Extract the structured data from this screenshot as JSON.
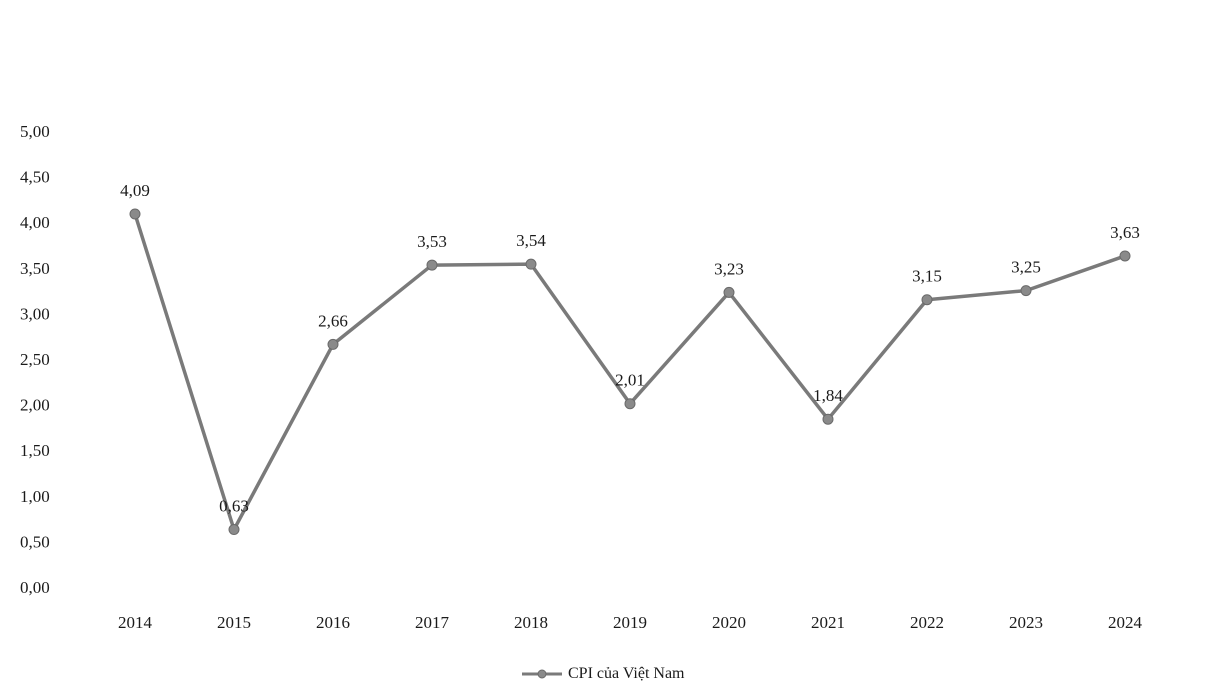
{
  "chart_data": {
    "type": "line",
    "title": "",
    "xlabel": "",
    "ylabel": "",
    "categories": [
      "2014",
      "2015",
      "2016",
      "2017",
      "2018",
      "2019",
      "2020",
      "2021",
      "2022",
      "2023",
      "2024"
    ],
    "series": [
      {
        "name": "CPI của Việt Nam",
        "values": [
          4.09,
          0.63,
          2.66,
          3.53,
          3.54,
          2.01,
          3.23,
          1.84,
          3.15,
          3.25,
          3.63
        ],
        "labels": [
          "4,09",
          "0,63",
          "2,66",
          "3,53",
          "3,54",
          "2,01",
          "3,23",
          "1,84",
          "3,15",
          "3,25",
          "3,63"
        ],
        "color": "#7a7a7a",
        "marker_color": "#8a8a8a"
      }
    ],
    "yticks": [
      {
        "value": 0,
        "label": "0,00"
      },
      {
        "value": 0.5,
        "label": "0,50"
      },
      {
        "value": 1,
        "label": "1,00"
      },
      {
        "value": 1.5,
        "label": "1,50"
      },
      {
        "value": 2,
        "label": "2,00"
      },
      {
        "value": 2.5,
        "label": "2,50"
      },
      {
        "value": 3,
        "label": "3,00"
      },
      {
        "value": 3.5,
        "label": "3,50"
      },
      {
        "value": 4,
        "label": "4,00"
      },
      {
        "value": 4.5,
        "label": "4,50"
      },
      {
        "value": 5,
        "label": "5,00"
      }
    ],
    "ylim": [
      0,
      5
    ],
    "grid": false,
    "legend": "bottom-center"
  }
}
